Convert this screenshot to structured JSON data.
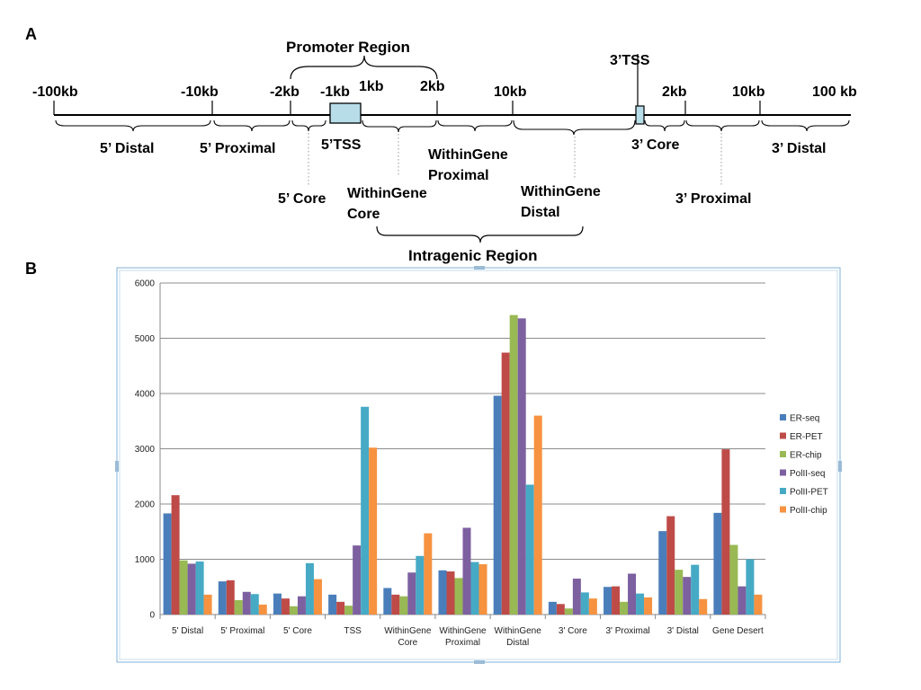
{
  "panel_a": {
    "letter": "A",
    "promoter_region": "Promoter Region",
    "intragenic_region": "Intragenic Region",
    "tss3_top": "3’TSS",
    "ticks": {
      "m100kb": "-100kb",
      "m10kb": "-10kb",
      "m2kb": "-2kb",
      "m1kb": "-1kb",
      "p1kb": "1kb",
      "p2kb": "2kb",
      "p10kb": "10kb",
      "r2kb": "2kb",
      "r10kb": "10kb",
      "r100kb": "100 kb"
    },
    "regions": {
      "distal5": "5’ Distal",
      "proximal5": "5’ Proximal",
      "tss5": "5’TSS",
      "core5": "5’ Core",
      "wg_core_1": "WithinGene",
      "wg_core_2": "Core",
      "wg_prox_1": "WithinGene",
      "wg_prox_2": "Proximal",
      "wg_distal_1": "WithinGene",
      "wg_distal_2": "Distal",
      "core3": "3’ Core",
      "proximal3": "3’ Proximal",
      "distal3": "3’ Distal"
    },
    "colors": {
      "tss_box": "#b7dde8"
    }
  },
  "panel_b": {
    "letter": "B"
  },
  "chart_data": {
    "type": "bar",
    "categories": [
      "5' Distal",
      "5' Proximal",
      "5' Core",
      "TSS",
      "WithinGene Core",
      "WithinGene Proximal",
      "WithinGene Distal",
      "3' Core",
      "3' Proximal",
      "3' Distal",
      "Gene Desert"
    ],
    "category_lines": [
      [
        "5' Distal"
      ],
      [
        "5' Proximal"
      ],
      [
        "5' Core"
      ],
      [
        "TSS"
      ],
      [
        "WithinGene",
        "Core"
      ],
      [
        "WithinGene",
        "Proximal"
      ],
      [
        "WithinGene",
        "Distal"
      ],
      [
        "3' Core"
      ],
      [
        "3' Proximal"
      ],
      [
        "3' Distal"
      ],
      [
        "Gene Desert"
      ]
    ],
    "series": [
      {
        "name": "ER-seq",
        "color": "#4a7ebb",
        "values": [
          1830,
          600,
          380,
          360,
          480,
          800,
          3960,
          230,
          500,
          1510,
          1840
        ]
      },
      {
        "name": "ER-PET",
        "color": "#be4b48",
        "values": [
          2160,
          620,
          290,
          230,
          360,
          780,
          4740,
          190,
          510,
          1780,
          2990
        ]
      },
      {
        "name": "ER-chip",
        "color": "#98b954",
        "values": [
          980,
          260,
          150,
          160,
          330,
          660,
          5420,
          110,
          230,
          810,
          1260
        ]
      },
      {
        "name": "PolII-seq",
        "color": "#7d60a0",
        "values": [
          920,
          410,
          330,
          1250,
          760,
          1570,
          5360,
          650,
          740,
          680,
          510
        ]
      },
      {
        "name": "PolII-PET",
        "color": "#46aac5",
        "values": [
          960,
          370,
          930,
          3760,
          1060,
          950,
          2350,
          400,
          380,
          900,
          1000
        ]
      },
      {
        "name": "PolII-chip",
        "color": "#f69240",
        "values": [
          360,
          180,
          640,
          3020,
          1470,
          910,
          3600,
          290,
          310,
          280,
          360
        ]
      }
    ],
    "ylim": [
      0,
      6000
    ],
    "yticks": [
      0,
      1000,
      2000,
      3000,
      4000,
      5000,
      6000
    ],
    "grid": true,
    "legend": "right"
  }
}
